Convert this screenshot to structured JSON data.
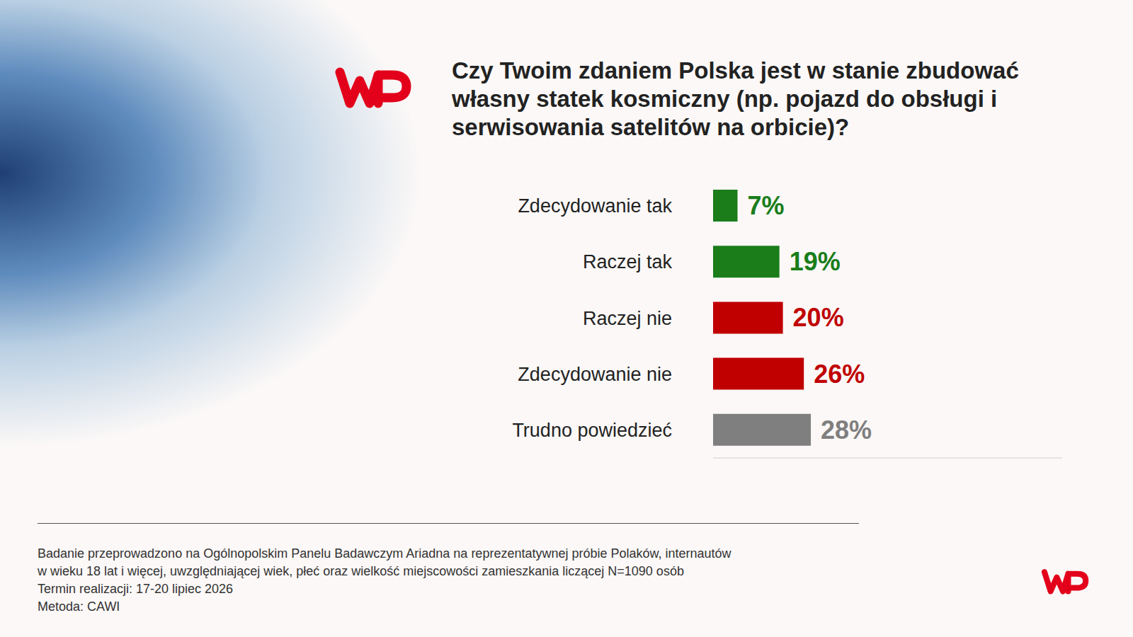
{
  "chart_data": {
    "type": "bar",
    "orientation": "horizontal",
    "title": "Czy Twoim zdaniem Polska jest w stanie zbudować własny statek kosmiczny (np. pojazd do obsługi i serwisowania satelitów na orbicie)?",
    "categories": [
      "Zdecydowanie tak",
      "Raczej tak",
      "Raczej nie",
      "Zdecydowanie nie",
      "Trudno powiedzieć"
    ],
    "values": [
      7,
      19,
      20,
      26,
      28
    ],
    "value_labels": [
      "7%",
      "19%",
      "20%",
      "26%",
      "28%"
    ],
    "colors": [
      "#1a7d1a",
      "#1a7d1a",
      "#c00000",
      "#c00000",
      "#7f7f7f"
    ],
    "xlim": [
      0,
      100
    ],
    "grid": false,
    "data_labels": true,
    "tick_labels": "y",
    "footnote": [
      "Badanie przeprowadzono na Ogólnopolskim Panelu Badawczym Ariadna na reprezentatywnej próbie Polaków, internautów",
      "w wieku 18 lat i więcej, uwzględniającej wiek, płeć oraz wielkość miejscowości zamieszkania liczącej N=1090 osób",
      "Termin realizacji: 17-20 lipiec 2026",
      "Metoda: CAWI"
    ]
  }
}
